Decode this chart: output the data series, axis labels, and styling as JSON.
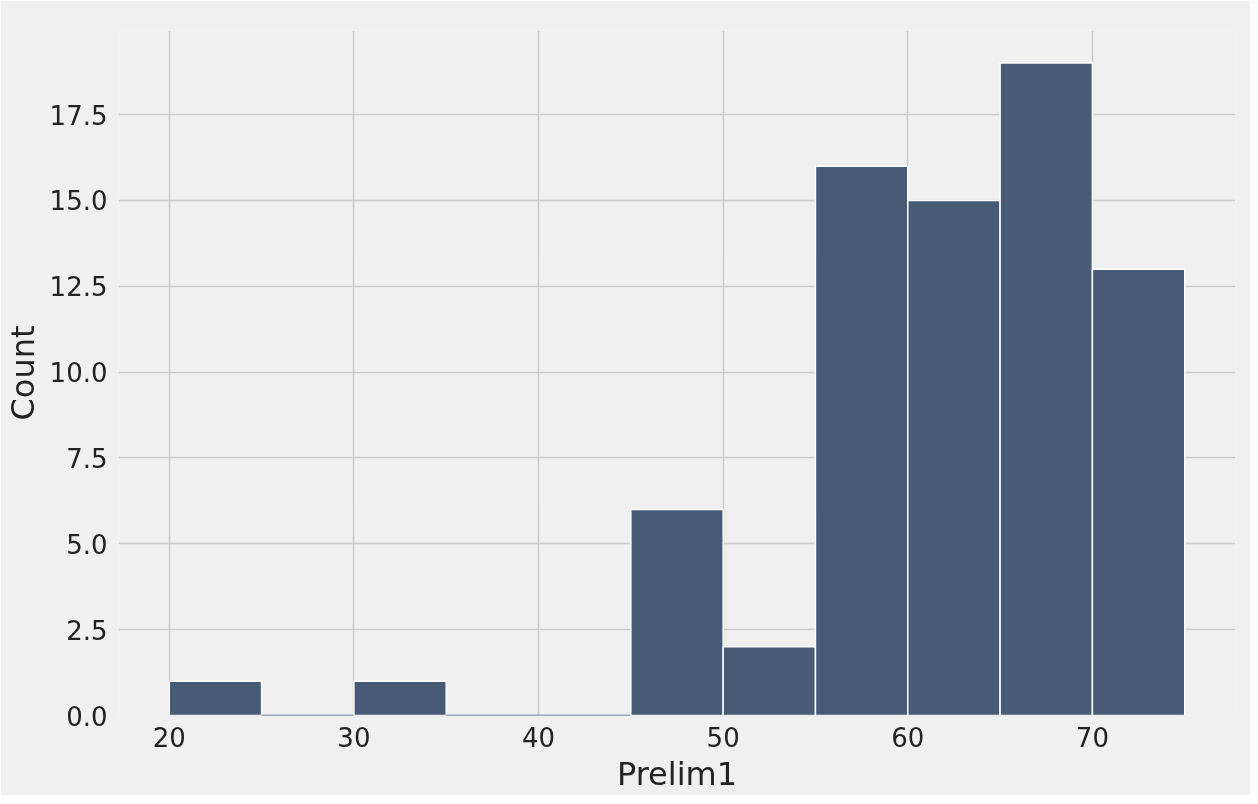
{
  "chart_data": {
    "type": "histogram",
    "xlabel": "Prelim1",
    "ylabel": "Count",
    "bins": [
      20,
      25,
      30,
      35,
      40,
      45,
      50,
      55,
      60,
      65,
      70,
      75
    ],
    "values": [
      1,
      0,
      1,
      0,
      0,
      6,
      2,
      16,
      15,
      19,
      13
    ],
    "color": "#475b76",
    "xlim": [
      17.25,
      77.75
    ],
    "ylim": [
      0,
      19.95
    ],
    "xticks": [
      20,
      30,
      40,
      50,
      60,
      70
    ],
    "yticks": [
      {
        "value": 0,
        "label": "0.0"
      },
      {
        "value": 2.5,
        "label": "2.5"
      },
      {
        "value": 5,
        "label": "5.0"
      },
      {
        "value": 7.5,
        "label": "7.5"
      },
      {
        "value": 10,
        "label": "10.0"
      },
      {
        "value": 12.5,
        "label": "12.5"
      },
      {
        "value": 15,
        "label": "15.0"
      },
      {
        "value": 17.5,
        "label": "17.5"
      }
    ],
    "grid": true
  }
}
